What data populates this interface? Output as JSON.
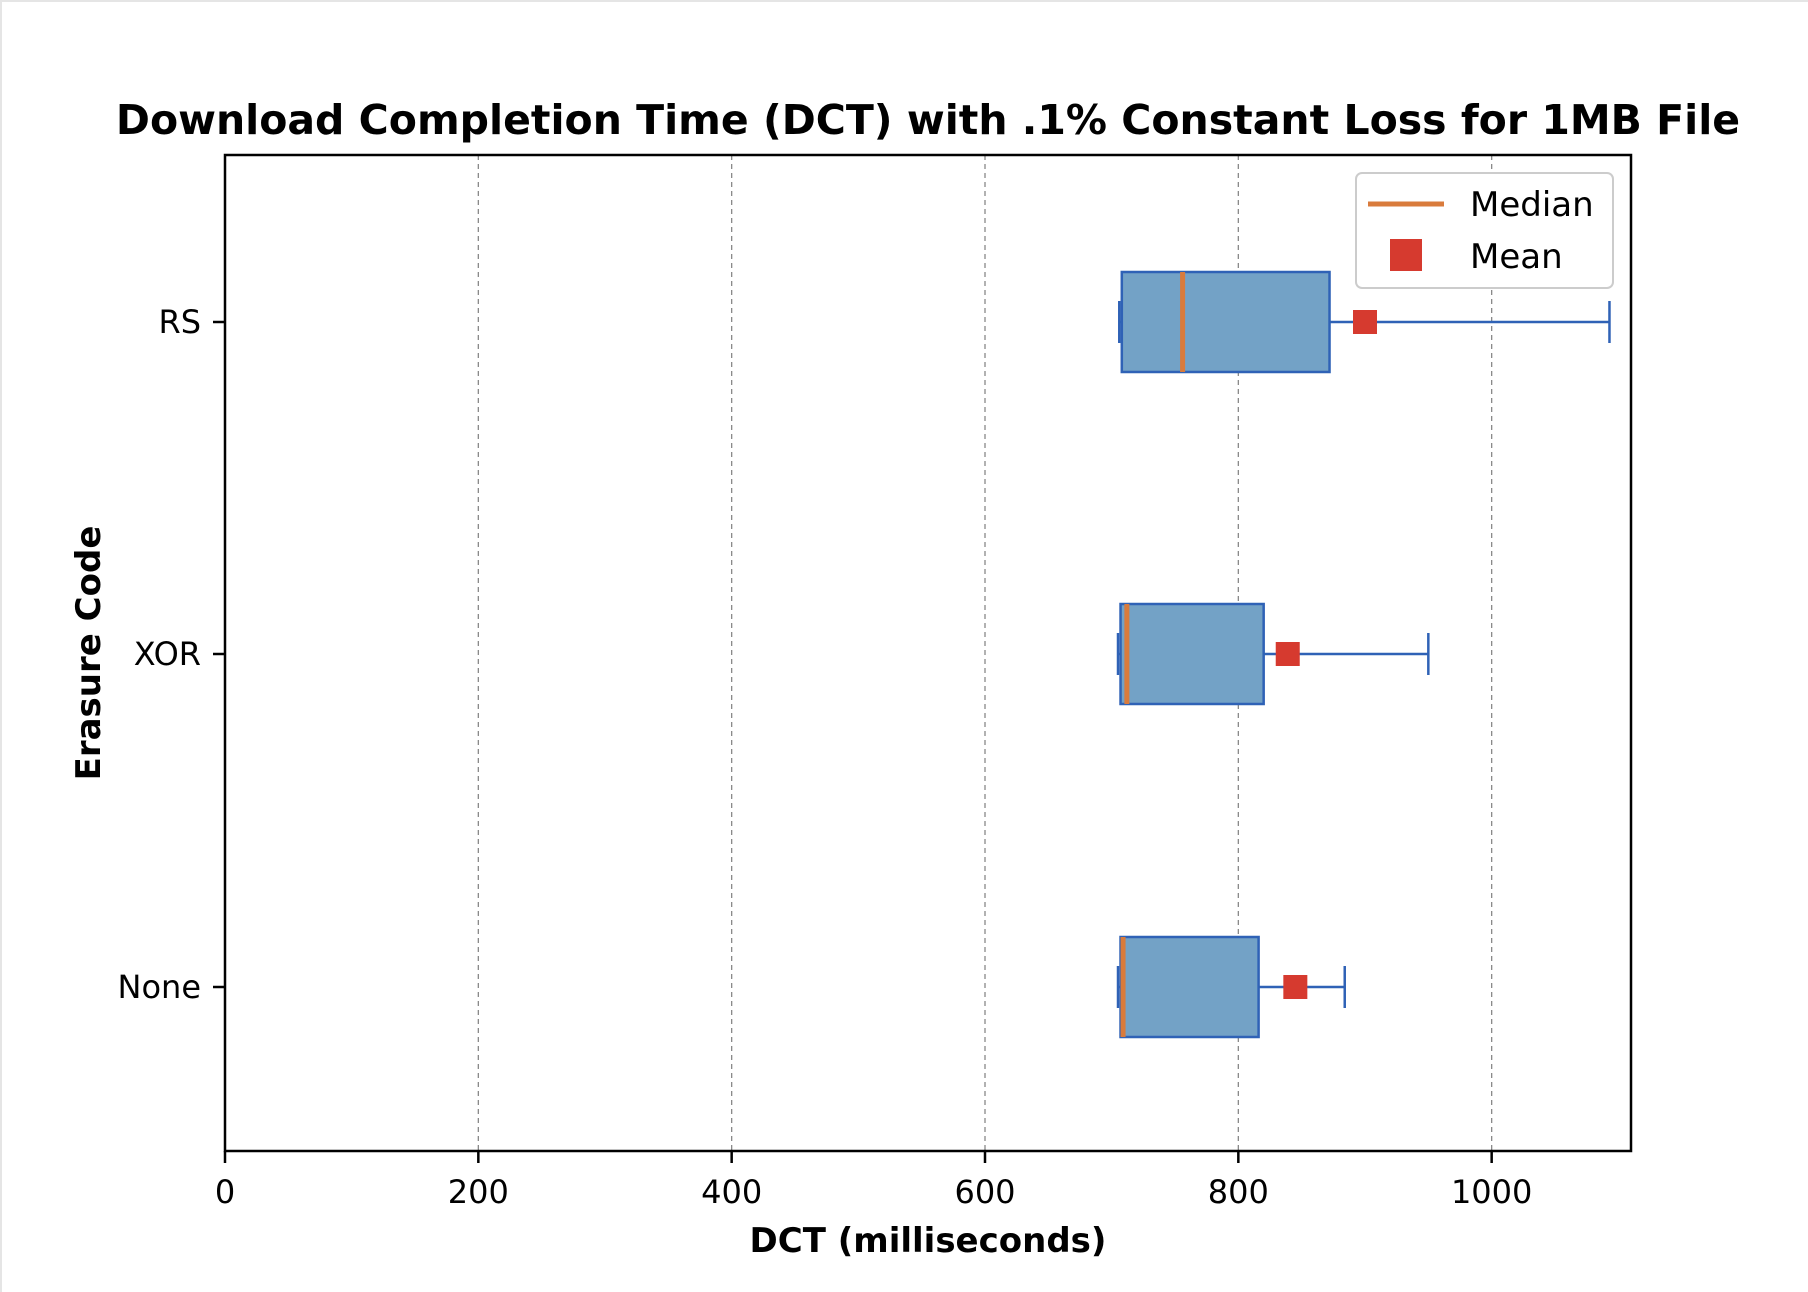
{
  "chart_data": {
    "type": "boxplot",
    "orientation": "horizontal",
    "title": "Download Completion Time (DCT) with .1% Constant Loss for 1MB File",
    "xlabel": "DCT (milliseconds)",
    "ylabel": "Erasure Code",
    "xlim": [
      0,
      1110
    ],
    "xticks": [
      0,
      200,
      400,
      600,
      800,
      1000
    ],
    "xtick_labels": [
      "0",
      "200",
      "400",
      "600",
      "800",
      "1000"
    ],
    "grid": "vertical dashed",
    "legend_position": "top-right",
    "legend": {
      "median_label": "Median",
      "mean_label": "Mean"
    },
    "categories": [
      "None",
      "XOR",
      "RS"
    ],
    "boxes": [
      {
        "label": "None",
        "whisker_low": 705,
        "q1": 707,
        "median": 709,
        "q3": 816,
        "whisker_high": 884,
        "mean": 845
      },
      {
        "label": "XOR",
        "whisker_low": 705,
        "q1": 707,
        "median": 712,
        "q3": 820,
        "whisker_high": 950,
        "mean": 839
      },
      {
        "label": "RS",
        "whisker_low": 706,
        "q1": 708,
        "median": 756,
        "q3": 872,
        "whisker_high": 1093,
        "mean": 900
      }
    ],
    "colors": {
      "box_fill": "#73a2c6",
      "box_edge": "#2f62b6",
      "median": "#d97b3c",
      "mean": "#d63a2f",
      "grid": "#888888",
      "axis": "#000000"
    }
  }
}
